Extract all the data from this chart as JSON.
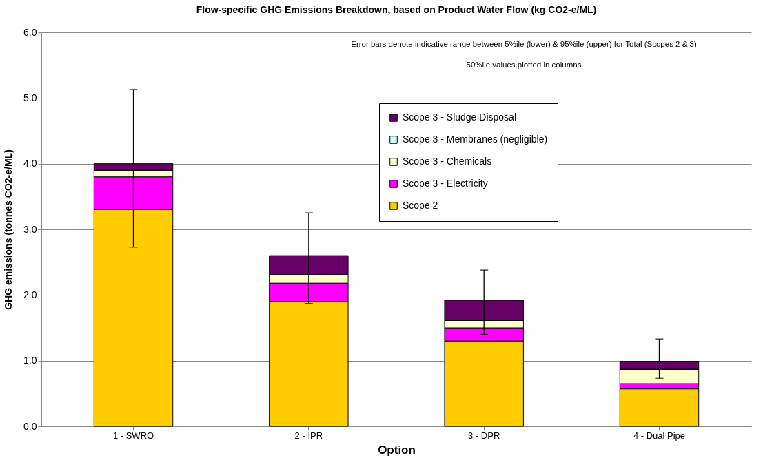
{
  "chart_data": {
    "type": "bar",
    "stacked": true,
    "title": "Flow-specific GHG Emissions Breakdown, based on Product Water Flow (kg CO2-e/ML)",
    "xlabel": "Option",
    "ylabel": "GHG emissions (tonnes CO2-e/ML)",
    "categories": [
      "1 - SWRO",
      "2 - IPR",
      "3 - DPR",
      "4 - Dual Pipe"
    ],
    "series": [
      {
        "name": "Scope 2",
        "color": "#ffcc00",
        "values": [
          3.3,
          1.9,
          1.3,
          0.57
        ]
      },
      {
        "name": "Scope 3 - Electricity",
        "color": "#ff00ff",
        "values": [
          0.5,
          0.28,
          0.2,
          0.08
        ]
      },
      {
        "name": "Scope 3 - Chemicals",
        "color": "#ffffcc",
        "values": [
          0.1,
          0.13,
          0.11,
          0.22
        ]
      },
      {
        "name": "Scope 3 - Membranes (negligible)",
        "color": "#ccffff",
        "values": [
          0,
          0,
          0,
          0
        ]
      },
      {
        "name": "Scope 3 - Sludge Disposal",
        "color": "#660066",
        "values": [
          0.1,
          0.29,
          0.31,
          0.12
        ],
        "errors": [
          [
            2.73,
            5.13
          ],
          [
            1.87,
            3.25
          ],
          [
            1.4,
            2.38
          ],
          [
            0.73,
            1.33
          ]
        ]
      }
    ],
    "ylim": [
      0,
      6
    ],
    "yticks": [
      {
        "value": 0,
        "label": "0.0"
      },
      {
        "value": 1,
        "label": "1.0"
      },
      {
        "value": 2,
        "label": "2.0"
      },
      {
        "value": 3,
        "label": "3.0"
      },
      {
        "value": 4,
        "label": "4.0"
      },
      {
        "value": 5,
        "label": "5.0"
      },
      {
        "value": 6,
        "label": "6.0"
      }
    ],
    "grid": "y",
    "legend": "top right",
    "annotations": [
      "Error bars denote indicative range between 5%ile (lower) & 95%ile (upper) for Total (Scopes 2 & 3)",
      "50%ile values plotted in columns"
    ]
  }
}
